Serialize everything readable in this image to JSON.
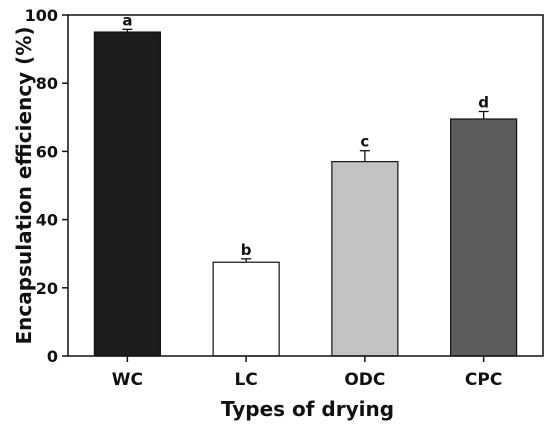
{
  "chart_data": {
    "type": "bar",
    "title": "",
    "xlabel": "Types of drying",
    "ylabel": "Encapsulation efficiency (%)",
    "categories": [
      "WC",
      "LC",
      "ODC",
      "CPC"
    ],
    "values": [
      95,
      27.5,
      57,
      69.5
    ],
    "errors": [
      0.8,
      1.0,
      3.2,
      2.2
    ],
    "significance_letters": [
      "a",
      "b",
      "c",
      "d"
    ],
    "bar_colors": [
      "#1c1c1c",
      "#ffffff",
      "#c3c3c3",
      "#5c5c5c"
    ],
    "ylim": [
      0,
      100
    ],
    "yticks": [
      0,
      20,
      40,
      60,
      80,
      100
    ],
    "grid": false,
    "legend": "none"
  }
}
